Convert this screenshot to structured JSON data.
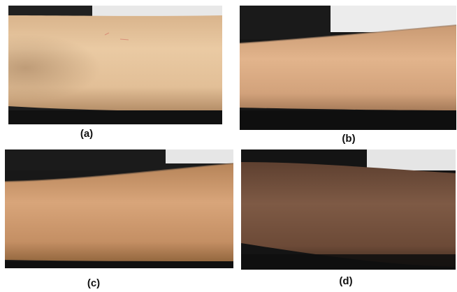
{
  "figure": {
    "panels": [
      {
        "id": "a",
        "caption": "(a)",
        "skin_tone": "#e6c49a",
        "background": "#1d1d1d"
      },
      {
        "id": "b",
        "caption": "(b)",
        "skin_tone": "#d8a981",
        "background": "#161616"
      },
      {
        "id": "c",
        "caption": "(c)",
        "skin_tone": "#c8946a",
        "background": "#181818"
      },
      {
        "id": "d",
        "caption": "(d)",
        "skin_tone": "#7a5540",
        "background": "#141414"
      }
    ]
  }
}
